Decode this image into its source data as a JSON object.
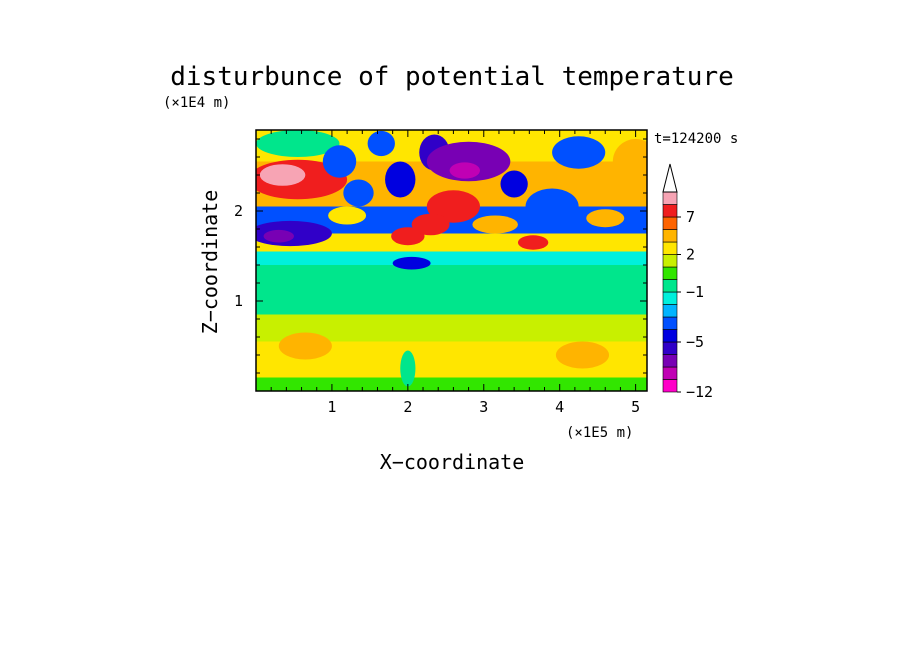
{
  "chart_data": {
    "type": "heatmap",
    "title": "disturbunce of potential temperature",
    "time_label": "t=124200 s",
    "xlabel": "X−coordinate",
    "ylabel": "Z−coordinate",
    "x_unit": "(×1E5 m)",
    "y_unit": "(×1E4 m)",
    "xlim": [
      0,
      5.15
    ],
    "ylim": [
      0,
      2.9
    ],
    "xticks": [
      1,
      2,
      3,
      4,
      5
    ],
    "yticks": [
      1,
      2
    ],
    "x_tick_labels": [
      "1",
      "2",
      "3",
      "4",
      "5"
    ],
    "y_tick_labels": [
      "1",
      "2"
    ],
    "colorbar": {
      "levels": [
        -12,
        -10,
        -8,
        -6,
        -5,
        -4,
        -3,
        -2,
        -1,
        0,
        1,
        2,
        3,
        5,
        7,
        9,
        11
      ],
      "tick_labels": [
        {
          "value": 7,
          "label": "7"
        },
        {
          "value": 2,
          "label": "2"
        },
        {
          "value": -1,
          "label": "−1"
        },
        {
          "value": -5,
          "label": "−5"
        },
        {
          "value": -12,
          "label": "−12"
        }
      ],
      "colors": [
        "#ff00c8",
        "#c000b4",
        "#7800b4",
        "#3000c8",
        "#0000e0",
        "#0050ff",
        "#00b4ff",
        "#00f0dc",
        "#00e68c",
        "#32e600",
        "#c8f000",
        "#ffe600",
        "#ffb400",
        "#ff6400",
        "#f01e1e",
        "#f7a4b4"
      ],
      "extend_top": true
    },
    "bands": [
      {
        "z": [
          0.0,
          0.15
        ],
        "value": 0.5
      },
      {
        "z": [
          0.15,
          0.55
        ],
        "value": 2.5
      },
      {
        "z": [
          0.55,
          0.85
        ],
        "value": 1.5
      },
      {
        "z": [
          0.85,
          1.2
        ],
        "value": -0.5
      },
      {
        "z": [
          1.2,
          1.4
        ],
        "value": -0.5
      },
      {
        "z": [
          1.4,
          1.55
        ],
        "value": -1.5
      },
      {
        "z": [
          1.55,
          1.75
        ],
        "value": 2.5
      },
      {
        "z": [
          1.75,
          2.05
        ],
        "value": -3.5
      },
      {
        "z": [
          2.05,
          2.55
        ],
        "value": 4
      },
      {
        "z": [
          2.55,
          2.9
        ],
        "value": 2.5
      }
    ],
    "blobs": [
      {
        "x": 0.55,
        "z": 2.35,
        "rx": 0.65,
        "rz": 0.22,
        "value": 8
      },
      {
        "x": 0.35,
        "z": 2.4,
        "rx": 0.3,
        "rz": 0.12,
        "value": 10
      },
      {
        "x": 0.45,
        "z": 1.75,
        "rx": 0.55,
        "rz": 0.14,
        "value": -5.5
      },
      {
        "x": 0.3,
        "z": 1.72,
        "rx": 0.2,
        "rz": 0.07,
        "value": -7
      },
      {
        "x": 0.55,
        "z": 2.75,
        "rx": 0.55,
        "rz": 0.15,
        "value": -0.5
      },
      {
        "x": 1.1,
        "z": 2.55,
        "rx": 0.22,
        "rz": 0.18,
        "value": -3.5
      },
      {
        "x": 1.35,
        "z": 2.2,
        "rx": 0.2,
        "rz": 0.15,
        "value": -3.5
      },
      {
        "x": 1.2,
        "z": 1.95,
        "rx": 0.25,
        "rz": 0.1,
        "value": 2.5
      },
      {
        "x": 1.65,
        "z": 2.75,
        "rx": 0.18,
        "rz": 0.14,
        "value": -3.5
      },
      {
        "x": 1.9,
        "z": 2.35,
        "rx": 0.2,
        "rz": 0.2,
        "value": -4.5
      },
      {
        "x": 2.0,
        "z": 1.72,
        "rx": 0.22,
        "rz": 0.1,
        "value": 7.5
      },
      {
        "x": 2.35,
        "z": 2.65,
        "rx": 0.2,
        "rz": 0.2,
        "value": -5.5
      },
      {
        "x": 2.6,
        "z": 2.05,
        "rx": 0.35,
        "rz": 0.18,
        "value": 7.5
      },
      {
        "x": 2.3,
        "z": 1.85,
        "rx": 0.25,
        "rz": 0.12,
        "value": 7.5
      },
      {
        "x": 2.8,
        "z": 2.55,
        "rx": 0.55,
        "rz": 0.22,
        "value": -6.5
      },
      {
        "x": 2.75,
        "z": 2.45,
        "rx": 0.2,
        "rz": 0.09,
        "value": -9
      },
      {
        "x": 3.15,
        "z": 1.85,
        "rx": 0.3,
        "rz": 0.1,
        "value": 4
      },
      {
        "x": 3.4,
        "z": 2.3,
        "rx": 0.18,
        "rz": 0.15,
        "value": -4.5
      },
      {
        "x": 3.65,
        "z": 1.65,
        "rx": 0.2,
        "rz": 0.08,
        "value": 7.5
      },
      {
        "x": 3.9,
        "z": 2.05,
        "rx": 0.35,
        "rz": 0.2,
        "value": -3.5
      },
      {
        "x": 4.25,
        "z": 2.65,
        "rx": 0.35,
        "rz": 0.18,
        "value": -3.5
      },
      {
        "x": 4.6,
        "z": 1.92,
        "rx": 0.25,
        "rz": 0.1,
        "value": 4
      },
      {
        "x": 5.0,
        "z": 2.55,
        "rx": 0.3,
        "rz": 0.25,
        "value": 4
      },
      {
        "x": 2.05,
        "z": 1.42,
        "rx": 0.25,
        "rz": 0.07,
        "value": -4.5
      },
      {
        "x": 0.65,
        "z": 0.5,
        "rx": 0.35,
        "rz": 0.15,
        "value": 4
      },
      {
        "x": 4.3,
        "z": 0.4,
        "rx": 0.35,
        "rz": 0.15,
        "value": 4
      },
      {
        "x": 2.0,
        "z": 0.25,
        "rx": 0.1,
        "rz": 0.2,
        "value": -0.5
      }
    ]
  }
}
